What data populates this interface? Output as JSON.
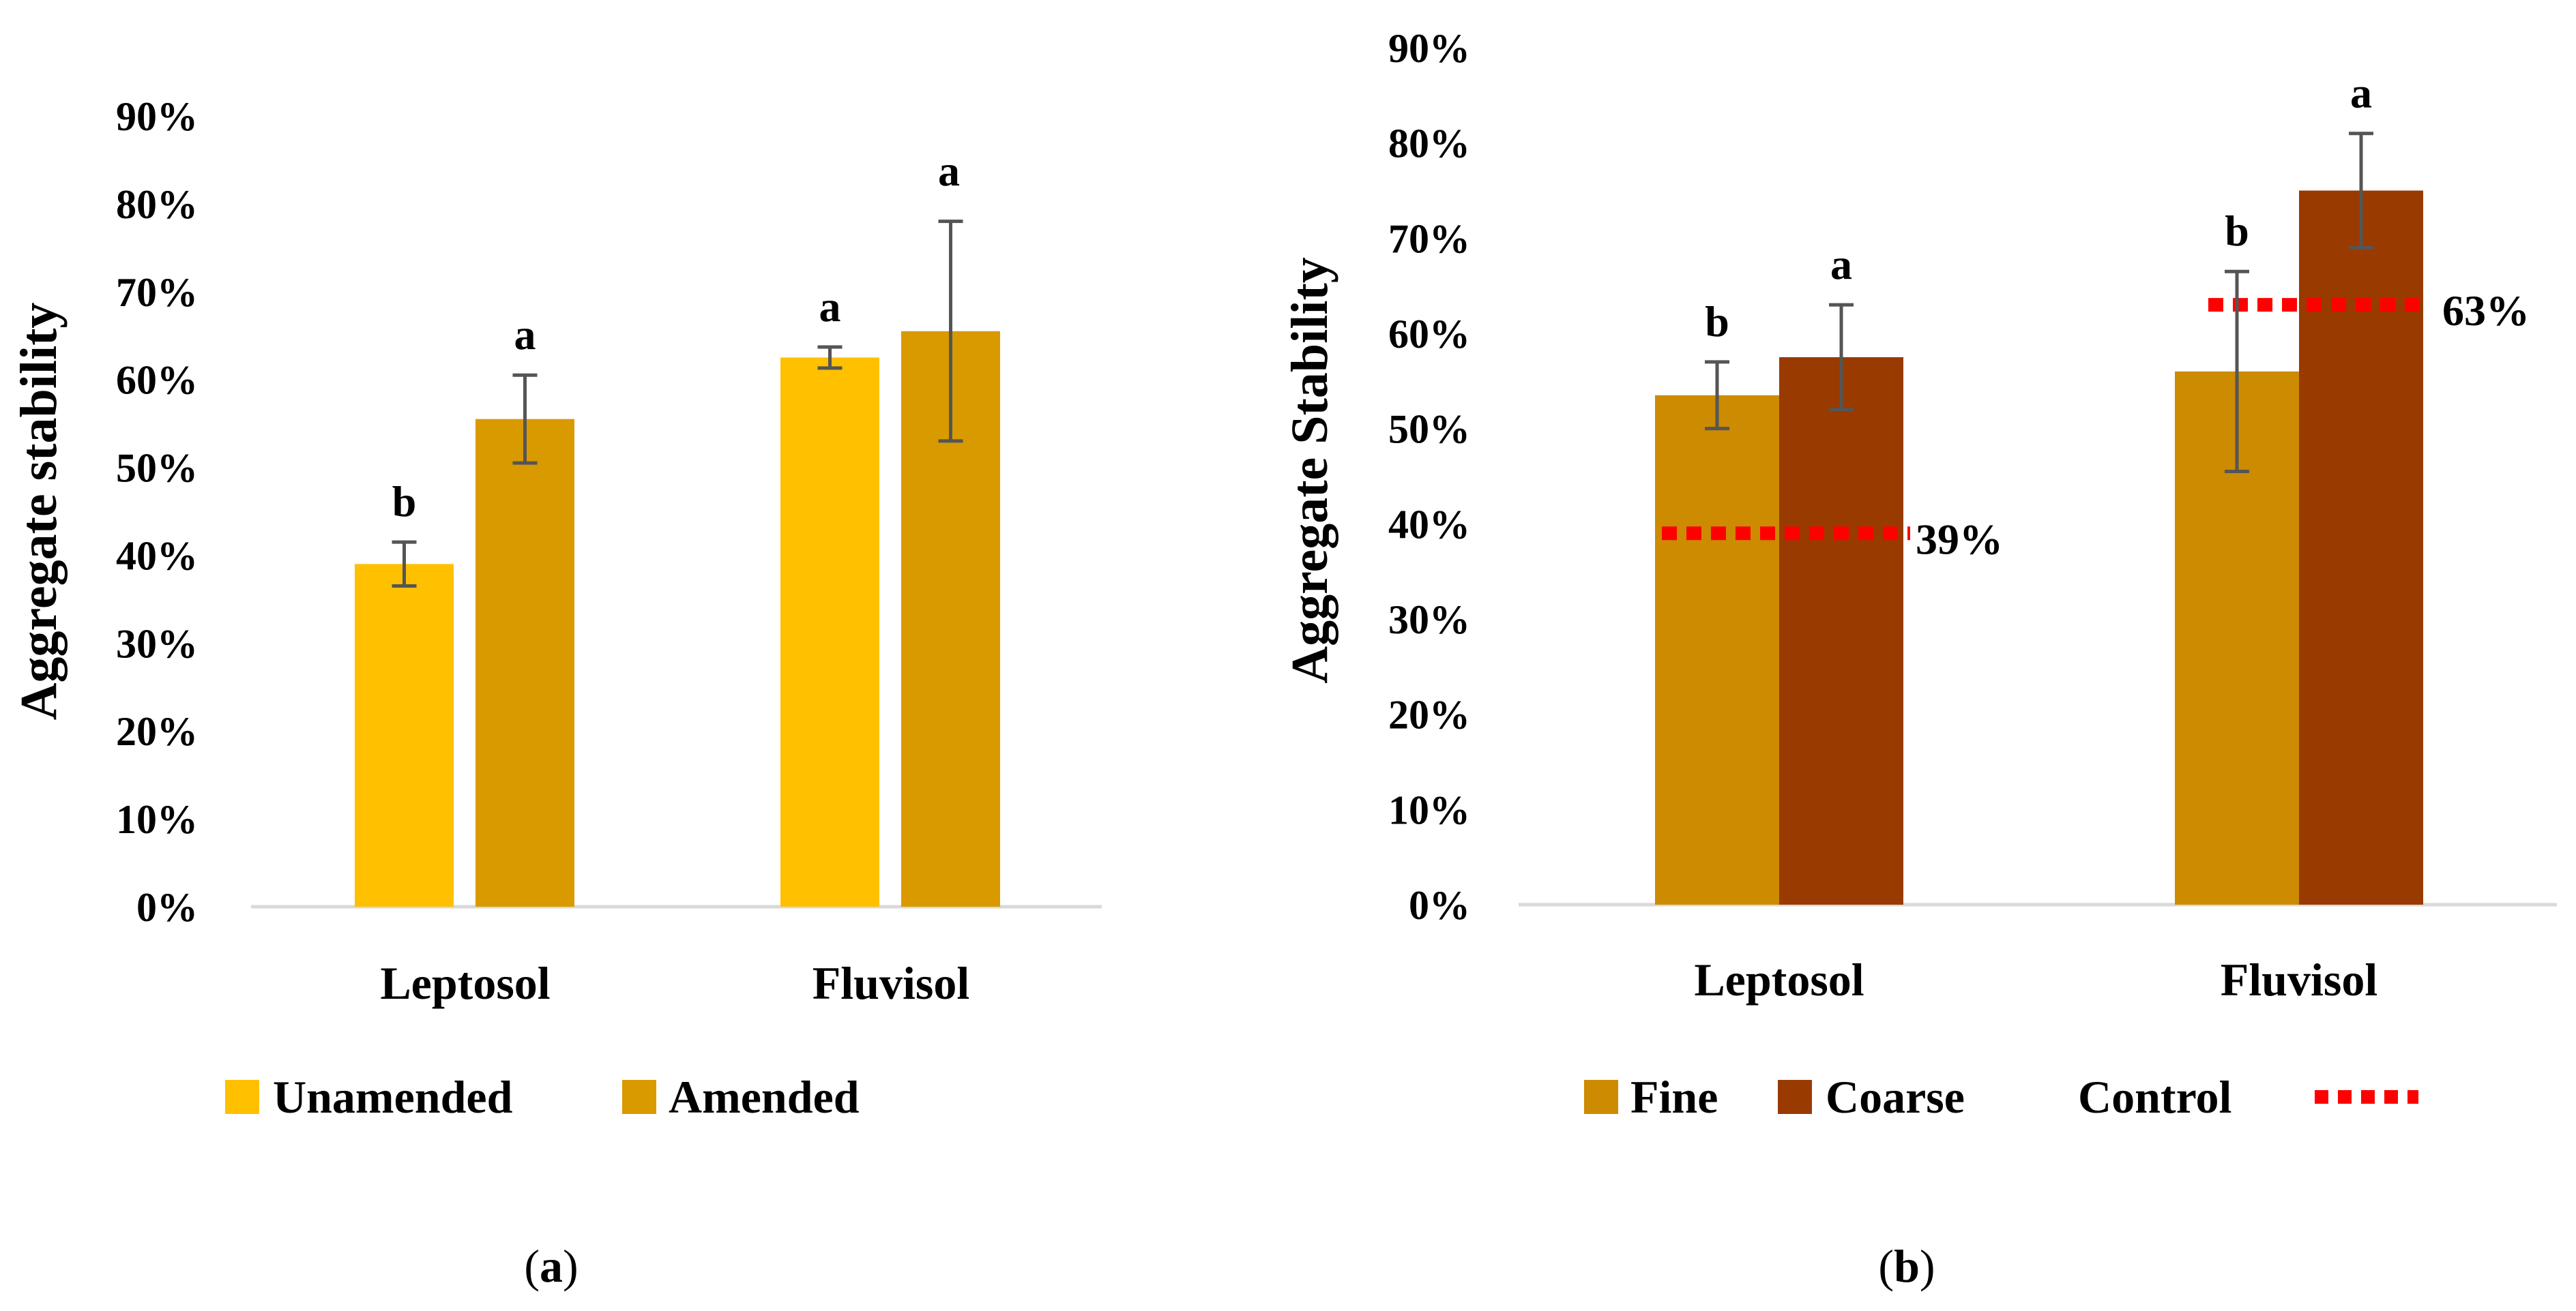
{
  "colors": {
    "unamended": "#FFC000",
    "amended": "#D99A00",
    "fine": "#CC8B00",
    "coarse": "#993A00",
    "control": "#FF0000",
    "error_bar": "#555555",
    "axis": "#D9D9D9"
  },
  "chart_data": [
    {
      "type": "bar",
      "panel_label": "a",
      "title": "",
      "xlabel": "",
      "ylabel": "Aggregate stability",
      "ylim": [
        0,
        90
      ],
      "yticks": [
        "0%",
        "10%",
        "20%",
        "30%",
        "40%",
        "50%",
        "60%",
        "70%",
        "80%",
        "90%"
      ],
      "categories": [
        "Leptosol",
        "Fluvisol"
      ],
      "series": [
        {
          "name": "Unamended",
          "values": [
            39,
            62.5
          ],
          "errors": [
            2.5,
            1.2
          ],
          "letters": [
            "b",
            "a"
          ],
          "color_key": "unamended"
        },
        {
          "name": "Amended",
          "values": [
            55.5,
            65.5
          ],
          "errors": [
            5,
            12.5
          ],
          "letters": [
            "a",
            ""
          ],
          "color_key": "amended"
        }
      ],
      "overall_letter": "a",
      "legend_location": "bottom"
    },
    {
      "type": "bar",
      "panel_label": "b",
      "title": "",
      "xlabel": "",
      "ylabel": "Aggregate Stability",
      "ylim": [
        0,
        90
      ],
      "yticks": [
        "0%",
        "10%",
        "20%",
        "30%",
        "40%",
        "50%",
        "60%",
        "70%",
        "80%",
        "90%"
      ],
      "categories": [
        "Leptosol",
        "Fluvisol"
      ],
      "series": [
        {
          "name": "Fine",
          "values": [
            53.5,
            56
          ],
          "errors": [
            3.5,
            10.5
          ],
          "letters": [
            "b",
            "b"
          ],
          "color_key": "fine"
        },
        {
          "name": "Coarse",
          "values": [
            57.5,
            75
          ],
          "errors": [
            5.5,
            6
          ],
          "letters": [
            "a",
            "a"
          ],
          "color_key": "coarse"
        }
      ],
      "control": {
        "name": "Control",
        "values": [
          39,
          63
        ],
        "labels": [
          "39%",
          "63%"
        ]
      },
      "legend_location": "bottom"
    }
  ]
}
